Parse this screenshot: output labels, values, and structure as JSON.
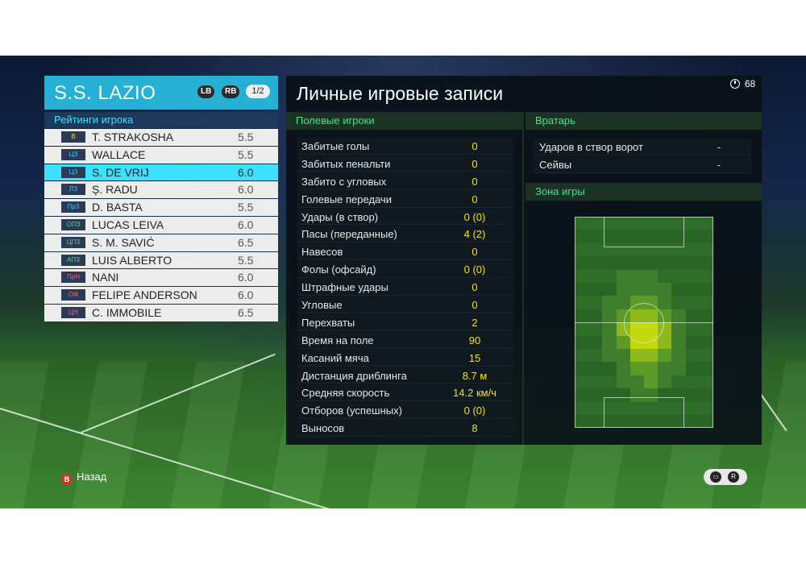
{
  "team": {
    "name": "S.S. LAZIO",
    "lb": "LB",
    "rb": "RB",
    "page": "1/2",
    "ratings_title": "Рейтинги игрока"
  },
  "players": [
    {
      "pos": "В",
      "pos_color": "#f2e21e",
      "name": "T. STRAKOSHA",
      "rating": "5.5",
      "selected": false
    },
    {
      "pos": "ЦЗ",
      "pos_color": "#3ec8ff",
      "name": "WALLACE",
      "rating": "5.5",
      "selected": false
    },
    {
      "pos": "ЦЗ",
      "pos_color": "#3ec8ff",
      "name": "S. DE VRIJ",
      "rating": "6.0",
      "selected": true
    },
    {
      "pos": "ЛЗ",
      "pos_color": "#3ec8ff",
      "name": "Ș. RADU",
      "rating": "6.0",
      "selected": false
    },
    {
      "pos": "ПрЗ",
      "pos_color": "#3ec8ff",
      "name": "D. BASTA",
      "rating": "5.5",
      "selected": false
    },
    {
      "pos": "ОПЗ",
      "pos_color": "#4ee06a",
      "name": "LUCAS LEIVA",
      "rating": "6.0",
      "selected": false
    },
    {
      "pos": "ЦПЗ",
      "pos_color": "#4ee06a",
      "name": "S. M. SAVIĆ",
      "rating": "6.5",
      "selected": false
    },
    {
      "pos": "АПЗ",
      "pos_color": "#4ee06a",
      "name": "LUIS ALBERTO",
      "rating": "5.5",
      "selected": false
    },
    {
      "pos": "ПрН",
      "pos_color": "#ff5a8a",
      "name": "NANI",
      "rating": "6.0",
      "selected": false
    },
    {
      "pos": "ОФ",
      "pos_color": "#ff5a8a",
      "name": "FELIPE ANDERSON",
      "rating": "6.0",
      "selected": false
    },
    {
      "pos": "ЦН",
      "pos_color": "#ff5a8a",
      "name": "C. IMMOBILE",
      "rating": "6.5",
      "selected": false
    }
  ],
  "stats_panel": {
    "title": "Личные игровые записи",
    "timer": "68",
    "field_header": "Полевые игроки",
    "gk_header": "Вратарь",
    "zone_header": "Зона игры"
  },
  "field_stats": [
    {
      "label": "Забитые голы",
      "value": "0"
    },
    {
      "label": "Забитых пенальти",
      "value": "0"
    },
    {
      "label": "Забито с угловых",
      "value": "0"
    },
    {
      "label": "Голевые передачи",
      "value": "0"
    },
    {
      "label": "Удары (в створ)",
      "value": "0 (0)"
    },
    {
      "label": "Пасы (переданные)",
      "value": "4 (2)"
    },
    {
      "label": "Навесов",
      "value": "0"
    },
    {
      "label": "Фолы (офсайд)",
      "value": "0 (0)"
    },
    {
      "label": "Штрафные удары",
      "value": "0"
    },
    {
      "label": "Угловые",
      "value": "0"
    },
    {
      "label": "Перехваты",
      "value": "2"
    },
    {
      "label": "Время на поле",
      "value": "90"
    },
    {
      "label": "Касаний мяча",
      "value": "15"
    },
    {
      "label": "Дистанция дриблинга",
      "value": "8.7 м"
    },
    {
      "label": "Средняя скорость",
      "value": "14.2 км/ч"
    },
    {
      "label": "Отборов (успешных)",
      "value": "0 (0)"
    },
    {
      "label": "Выносов",
      "value": "8"
    }
  ],
  "gk_stats": [
    {
      "label": "Ударов в створ ворот",
      "value": "-"
    },
    {
      "label": "Сейвы",
      "value": "-"
    }
  ],
  "footer": {
    "back_label": "Назад",
    "back_key": "B"
  }
}
